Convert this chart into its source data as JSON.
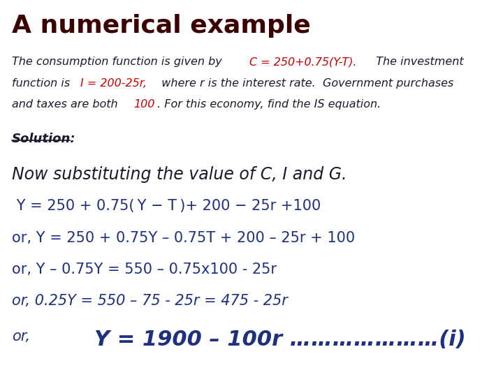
{
  "title": "A numerical example",
  "title_color": "#3D0000",
  "title_fontsize": 26,
  "bg_color": "#FFFFFF",
  "body_italic_color": "#1a1a2e",
  "red_color": "#CC0000",
  "navy_color": "#1F3080",
  "para_fontsize": 11.5,
  "solution_fontsize": 13,
  "step_fontsize": 15,
  "final_fontsize": 22,
  "line1_black": "The consumption function is given by ",
  "line1_red": "C = 250+0.75(Y-T).",
  "line1_black2": "  The investment",
  "line2_black": "function is ",
  "line2_red": "I = 200-25r,",
  "line2_black2": "  where r is the interest rate.  Government purchases",
  "line3_black": "and taxes are both ",
  "line3_red": "100",
  "line3_black2": ". For this economy, find the IS equation.",
  "solution_label": "Solution:",
  "now_sub": "Now substituting the value of C, I and G.",
  "step1": " Y = 250 + 0.75( Y − T )+ 200 − 25r +100",
  "step2": "or, Y = 250 + 0.75Y – 0.75T + 200 – 25r + 100",
  "step3": "or, Y – 0.75Y = 550 – 0.75x100 - 25r",
  "step4": "or, 0.25Y = 550 – 75 - 25r = 475 - 25r",
  "final_or": "or,",
  "final_eq": "Y = 1900 – 100r …………………(i)"
}
